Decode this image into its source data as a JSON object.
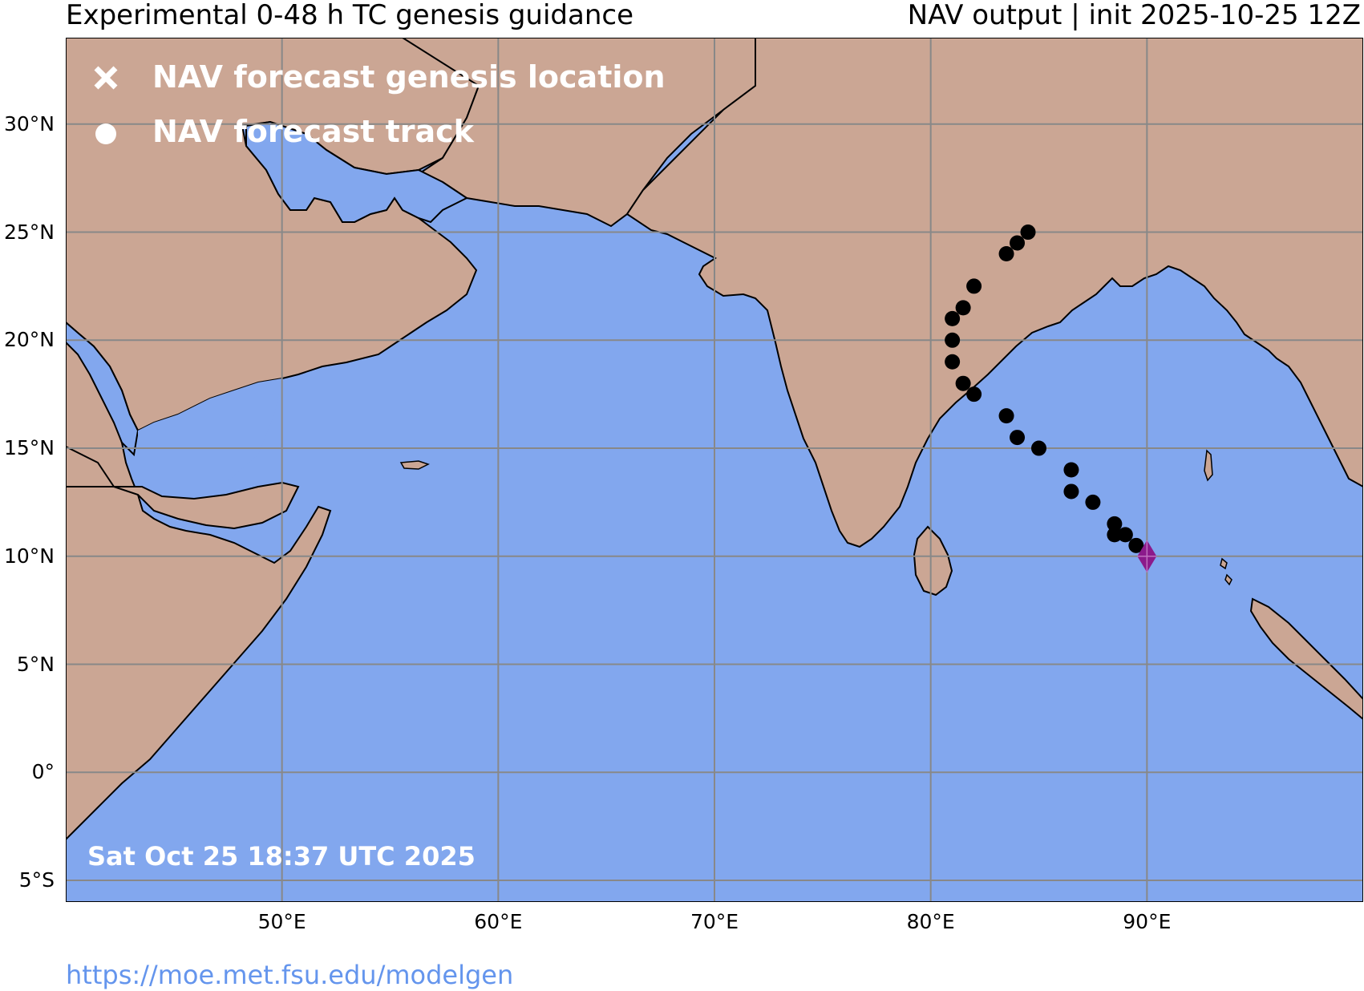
{
  "header": {
    "title_left": "Experimental 0-48 h TC genesis guidance",
    "title_right": "NAV output | init 2025-10-25 12Z"
  },
  "legend": {
    "genesis_label": "NAV forecast genesis location",
    "track_label": "NAV forecast track"
  },
  "timestamp": "Sat Oct 25 18:37 UTC 2025",
  "source_url": "https://moe.met.fsu.edu/modelgen",
  "colors": {
    "land": "#CBA694",
    "ocean": "#82A7EE",
    "grid": "#888888",
    "track": "#000000",
    "genesis": "#8B1A8B",
    "url": "#6495ED"
  },
  "axes": {
    "lat_labels": [
      {
        "value": 30,
        "label": "30°N"
      },
      {
        "value": 25,
        "label": "25°N"
      },
      {
        "value": 20,
        "label": "20°N"
      },
      {
        "value": 15,
        "label": "15°N"
      },
      {
        "value": 10,
        "label": "10°N"
      },
      {
        "value": 5,
        "label": "5°N"
      },
      {
        "value": 0,
        "label": "0°"
      },
      {
        "value": -5,
        "label": "5°S"
      }
    ],
    "lon_labels": [
      {
        "value": 50,
        "label": "50°E"
      },
      {
        "value": 60,
        "label": "60°E"
      },
      {
        "value": 70,
        "label": "70°E"
      },
      {
        "value": 80,
        "label": "80°E"
      },
      {
        "value": 90,
        "label": "90°E"
      }
    ],
    "lon_range": [
      40,
      100
    ],
    "lat_range": [
      -6,
      34
    ]
  },
  "genesis_location": {
    "lon": 90.0,
    "lat": 10.0
  },
  "track": [
    {
      "lon": 89.5,
      "lat": 10.5
    },
    {
      "lon": 89.0,
      "lat": 11.0
    },
    {
      "lon": 88.5,
      "lat": 11.0
    },
    {
      "lon": 88.5,
      "lat": 11.5
    },
    {
      "lon": 87.5,
      "lat": 12.5
    },
    {
      "lon": 86.5,
      "lat": 13.0
    },
    {
      "lon": 86.5,
      "lat": 14.0
    },
    {
      "lon": 85.0,
      "lat": 15.0
    },
    {
      "lon": 84.0,
      "lat": 15.5
    },
    {
      "lon": 83.5,
      "lat": 16.5
    },
    {
      "lon": 82.0,
      "lat": 17.5
    },
    {
      "lon": 81.5,
      "lat": 18.0
    },
    {
      "lon": 81.0,
      "lat": 19.0
    },
    {
      "lon": 81.0,
      "lat": 20.0
    },
    {
      "lon": 81.0,
      "lat": 21.0
    },
    {
      "lon": 81.5,
      "lat": 21.5
    },
    {
      "lon": 82.0,
      "lat": 22.5
    },
    {
      "lon": 83.5,
      "lat": 24.0
    },
    {
      "lon": 84.0,
      "lat": 24.5
    },
    {
      "lon": 84.5,
      "lat": 25.0
    }
  ]
}
